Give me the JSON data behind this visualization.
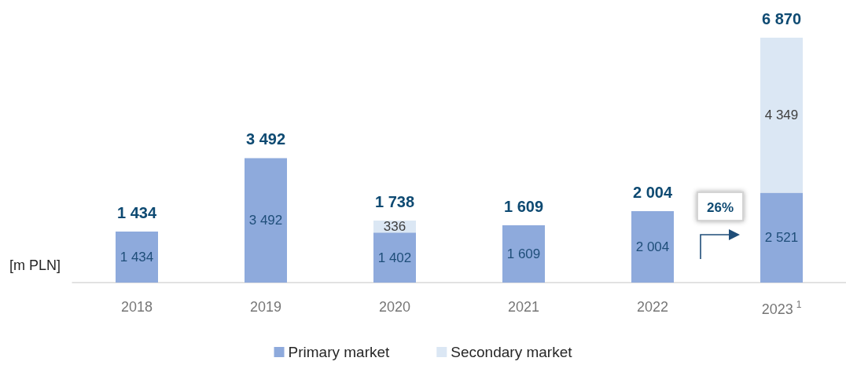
{
  "chart_data": {
    "type": "bar",
    "stacked": true,
    "ylabel": "[m PLN]",
    "legend": "bottom",
    "grid": false,
    "categories": [
      "2018",
      "2019",
      "2020",
      "2021",
      "2022",
      "2023$^{1}$"
    ],
    "series": [
      {
        "name": "Primary market",
        "color": "#8eaadc",
        "values": [
          1434,
          3492,
          1402,
          1609,
          2004,
          2521
        ],
        "value_labels": [
          "1 434",
          "3 492",
          "1 402",
          "1 609",
          "2 004",
          "2 521"
        ]
      },
      {
        "name": "Secondary market",
        "color": "#dbe7f4",
        "values": [
          null,
          null,
          336,
          null,
          null,
          4349
        ],
        "value_labels": [
          null,
          null,
          "336",
          null,
          null,
          "4 349"
        ]
      }
    ],
    "totals": [
      "1 434",
      "3 492",
      "1 738",
      "1 609",
      "2 004",
      "6 870"
    ],
    "annotations": [
      "26%"
    ]
  }
}
